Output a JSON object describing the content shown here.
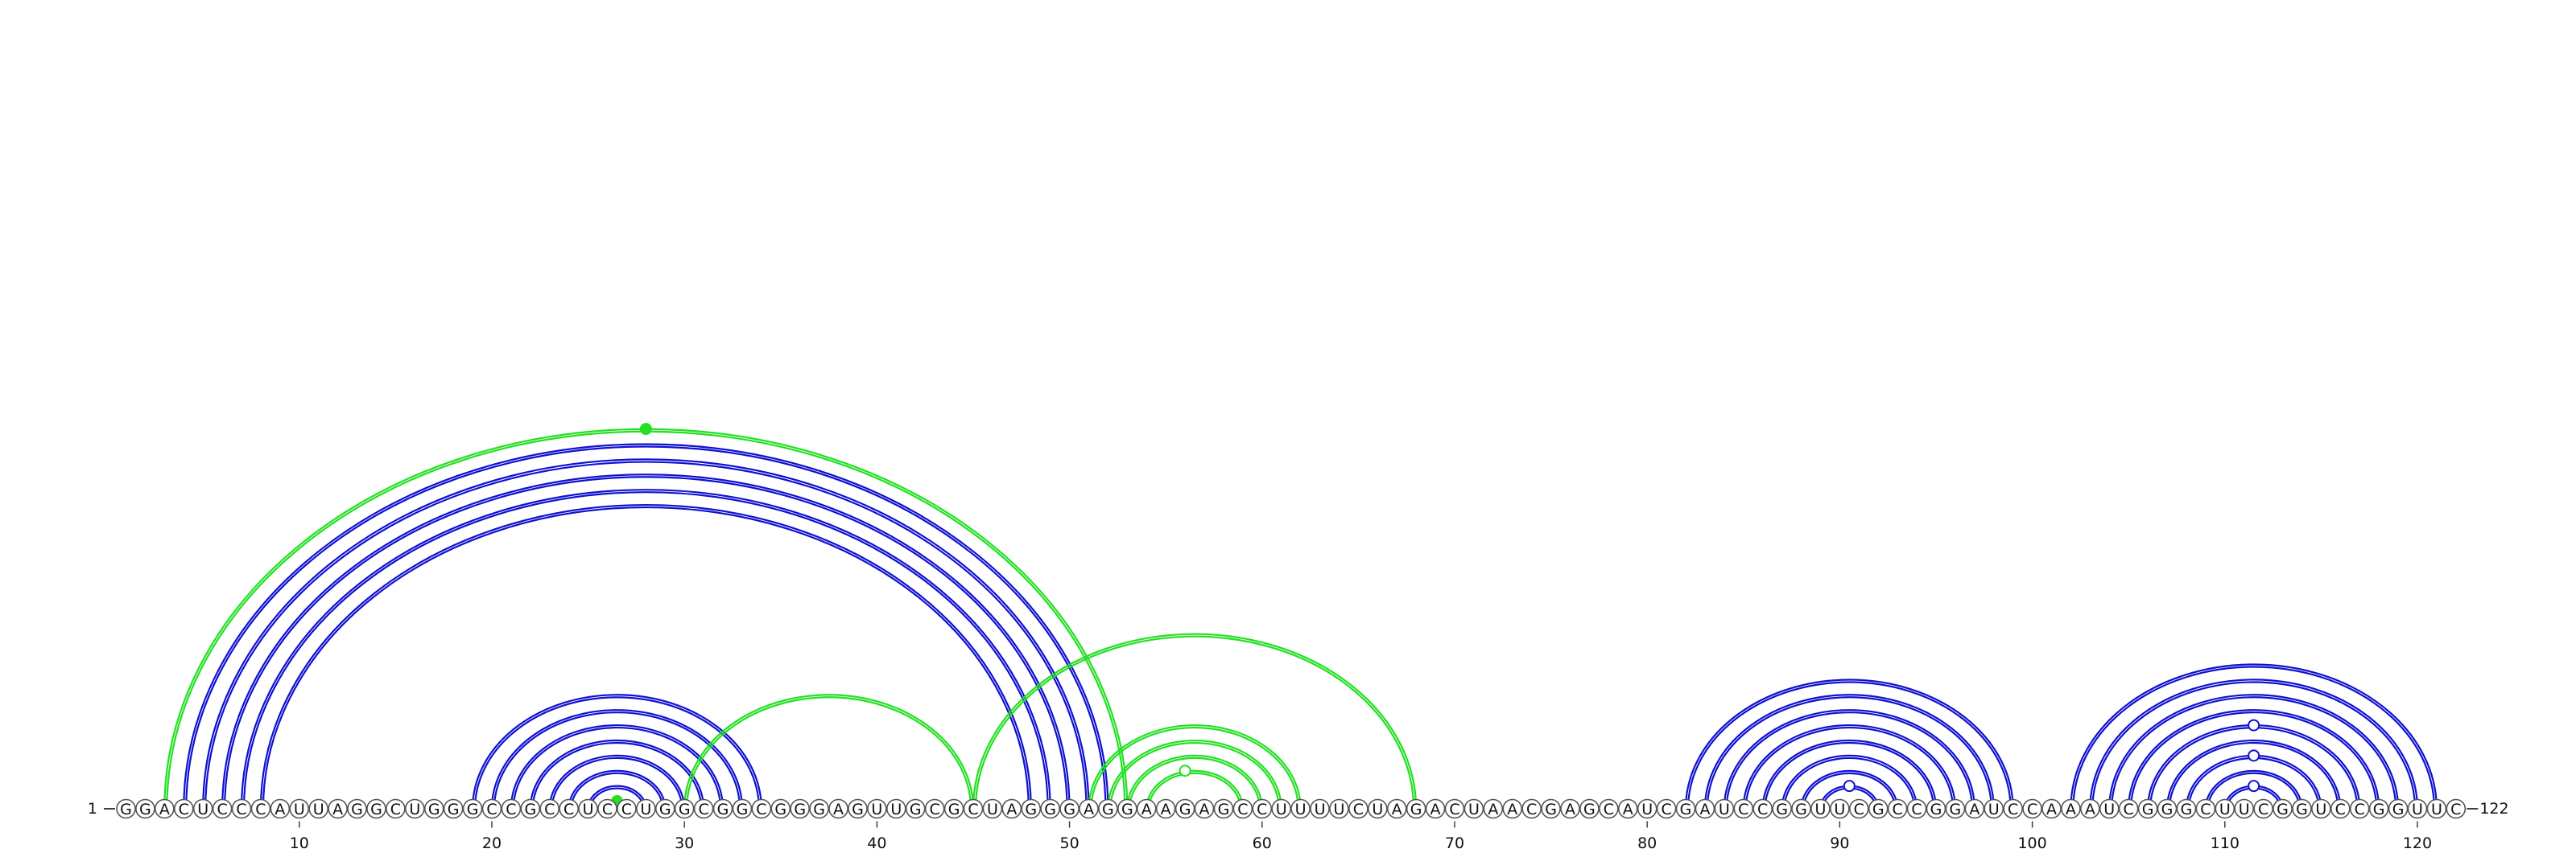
{
  "sequence": "GGACUCCCAUUAGGCUGGGCCGCCUCCUGGCGGCGGGAGUUGCGCUAGGGAGGAAGAGCCUUUUCUAGACUAACGAGCAUCGAUCCGGUUCGCCGGAUCCAAAUCGGGCUUCGGUCCGGUUC",
  "start_label": "1",
  "end_label": "122",
  "ticks": [
    10,
    20,
    30,
    40,
    50,
    60,
    70,
    80,
    90,
    100,
    110,
    120
  ],
  "colors": {
    "primary": "#1010d0",
    "alternate": "#22e022",
    "nucleotide_stroke": "#555555"
  },
  "pairs": {
    "primary": [
      [
        4,
        52
      ],
      [
        5,
        51
      ],
      [
        6,
        50
      ],
      [
        7,
        49
      ],
      [
        8,
        48
      ],
      [
        19,
        34
      ],
      [
        20,
        33
      ],
      [
        21,
        32
      ],
      [
        22,
        31
      ],
      [
        23,
        30
      ],
      [
        24,
        29
      ],
      [
        25,
        28
      ],
      [
        82,
        99
      ],
      [
        83,
        98
      ],
      [
        84,
        97
      ],
      [
        85,
        96
      ],
      [
        86,
        95
      ],
      [
        87,
        94
      ],
      [
        88,
        93
      ],
      [
        89,
        92
      ],
      [
        102,
        121
      ],
      [
        103,
        120
      ],
      [
        104,
        119
      ],
      [
        105,
        118
      ],
      [
        106,
        117
      ],
      [
        107,
        116
      ],
      [
        108,
        115
      ],
      [
        109,
        114
      ],
      [
        110,
        113
      ]
    ],
    "alternate": [
      [
        3,
        53
      ],
      [
        26,
        27
      ],
      [
        30,
        45
      ],
      [
        45,
        68
      ],
      [
        51,
        62
      ],
      [
        52,
        61
      ],
      [
        53,
        60
      ],
      [
        54,
        59
      ]
    ]
  },
  "loop_markers": [
    {
      "position": 28,
      "series": "alternate",
      "filled": true
    },
    {
      "position": 26.5,
      "series": "alternate",
      "filled": true
    },
    {
      "position": 56,
      "series": "alternate",
      "filled": false
    },
    {
      "position": 90.5,
      "series": "primary",
      "filled": false
    },
    {
      "position": 111.5,
      "series": "primary",
      "filled": false
    },
    {
      "position": 111.5,
      "series": "primary",
      "filled": false
    },
    {
      "position": 111.5,
      "series": "primary",
      "filled": false
    }
  ]
}
